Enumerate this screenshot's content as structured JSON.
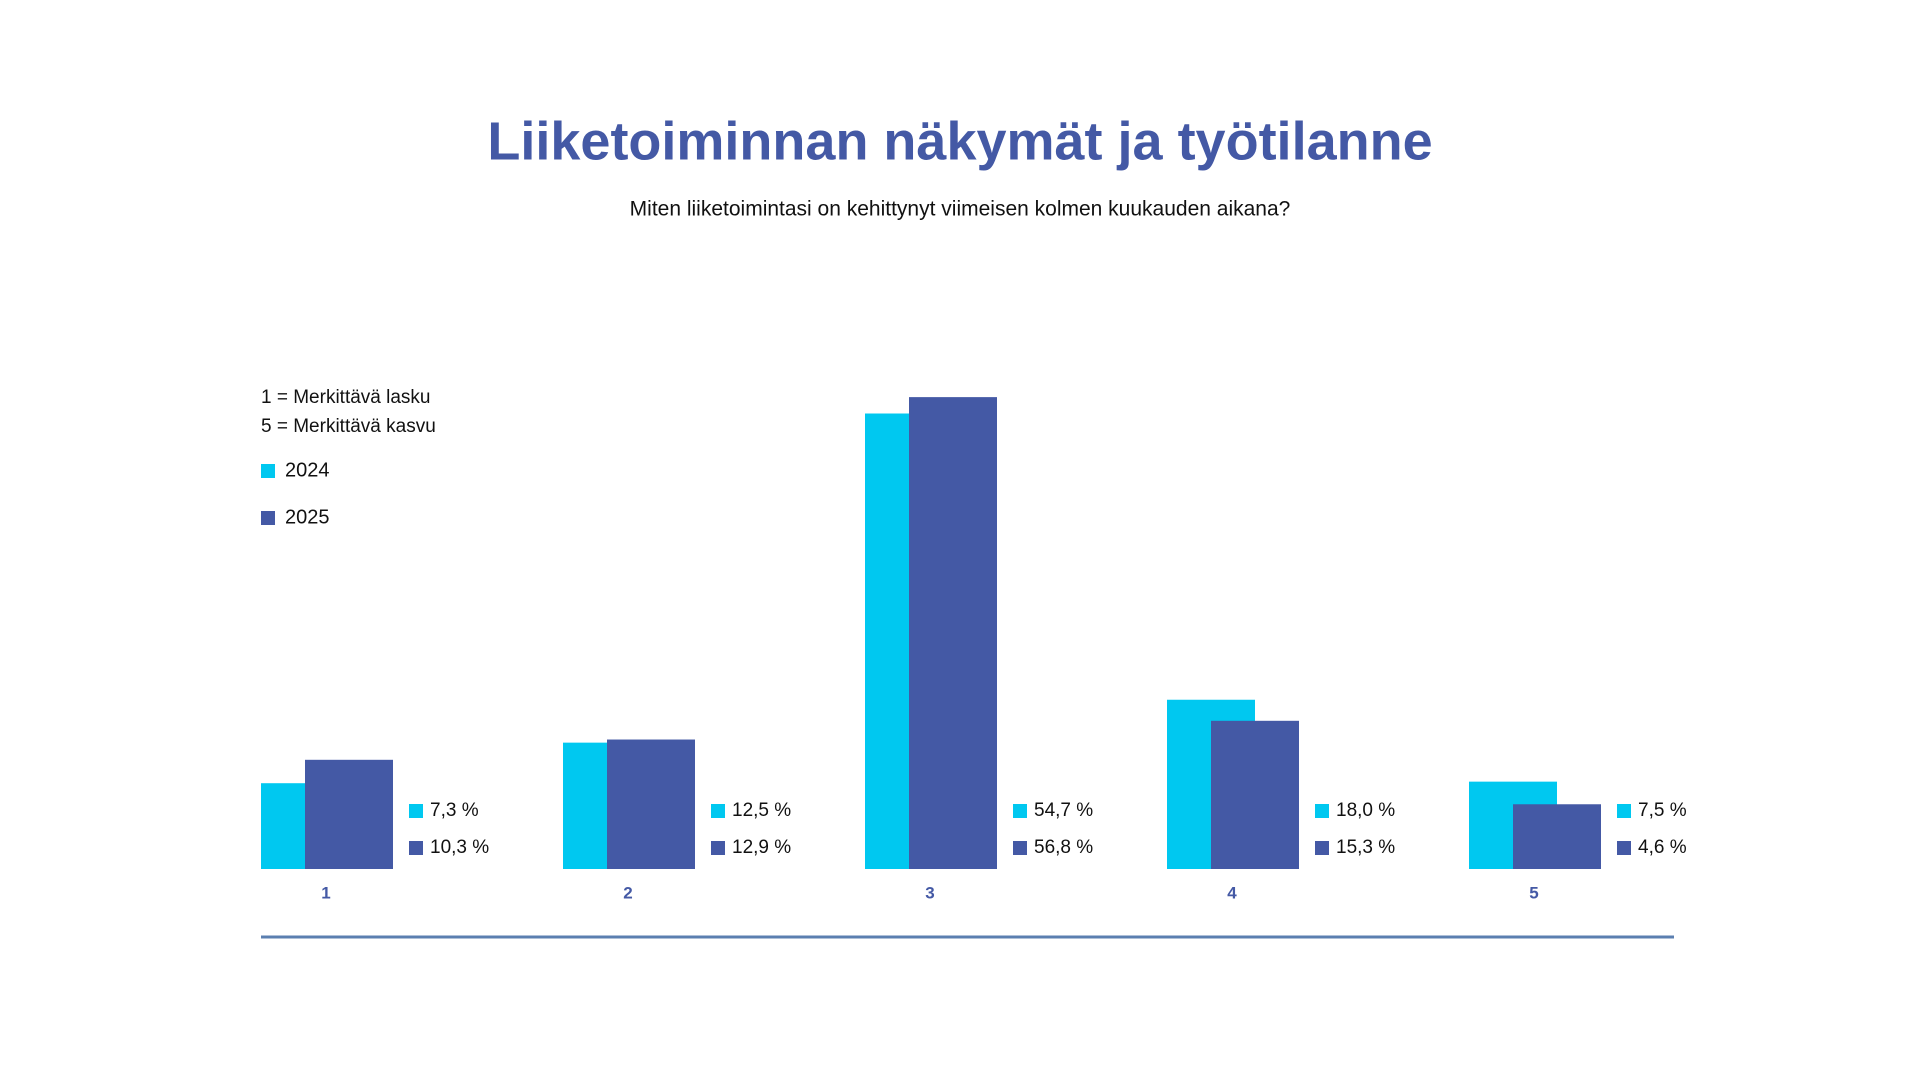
{
  "chart_data": {
    "type": "bar",
    "title": "Liiketoiminnan näkymät ja työtilanne",
    "subtitle": "Miten liiketoimintasi on kehittynyt viimeisen kolmen kuukauden aikana?",
    "annotations": [
      "1 = Merkittävä lasku",
      "5 = Merkittävä kasvu"
    ],
    "categories": [
      "1",
      "2",
      "3",
      "4",
      "5"
    ],
    "series": [
      {
        "name": "2024",
        "color": "#00c8f0",
        "values": [
          7.3,
          12.5,
          54.7,
          18.0,
          7.5
        ],
        "value_labels": [
          "7,3 %",
          "12,5 %",
          "54,7 %",
          "18,0 %",
          "7,5 %"
        ]
      },
      {
        "name": "2025",
        "color": "#4459a5",
        "values": [
          10.3,
          12.9,
          56.8,
          15.3,
          4.6
        ],
        "value_labels": [
          "10,3 %",
          "12,9 %",
          "56,8 %",
          "15,3 %",
          "4,6 %"
        ]
      }
    ],
    "ylim": [
      -3.7,
      57.2
    ]
  }
}
